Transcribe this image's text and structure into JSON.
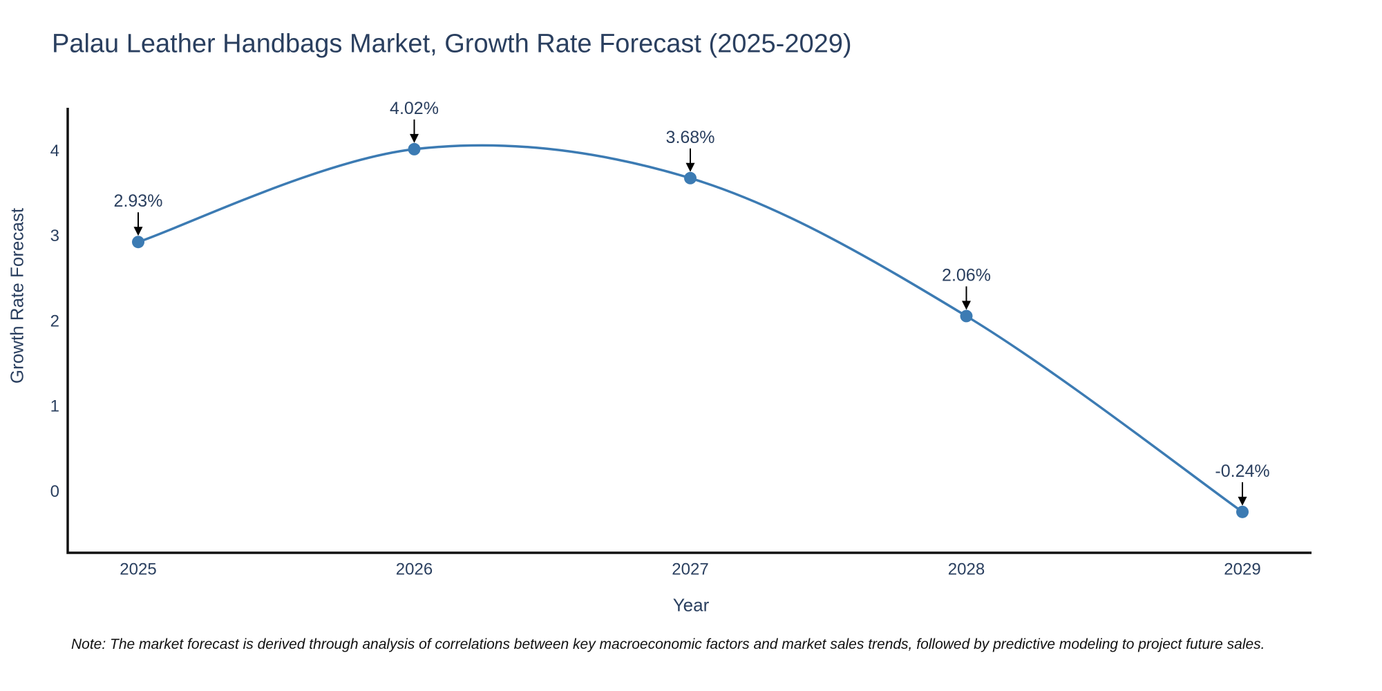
{
  "title": "Palau Leather Handbags Market, Growth Rate Forecast (2025-2029)",
  "note": "Note: The market forecast is derived through analysis of correlations between key macroeconomic factors and market sales trends, followed by predictive modeling to project future sales.",
  "chart_data": {
    "type": "line",
    "line_shape": "spline",
    "categories": [
      "2025",
      "2026",
      "2027",
      "2028",
      "2029"
    ],
    "values": [
      2.93,
      4.02,
      3.68,
      2.06,
      -0.24
    ],
    "point_labels": [
      "2.93%",
      "4.02%",
      "3.68%",
      "2.06%",
      "-0.24%"
    ],
    "title": "Palau Leather Handbags Market, Growth Rate Forecast (2025-2029)",
    "xlabel": "Year",
    "ylabel": "Growth Rate Forecast",
    "y_ticks": [
      0,
      1,
      2,
      3,
      4
    ],
    "ylim": [
      -0.72,
      4.49
    ],
    "grid": false,
    "legend": false,
    "annotations": "black down-arrows from each value label to its data point",
    "colors": {
      "line": "#3c7bb3",
      "marker": "#3c7bb3",
      "text": "#2a3f5f",
      "axis": "#111111",
      "arrow": "#000000",
      "background": "#ffffff"
    }
  }
}
